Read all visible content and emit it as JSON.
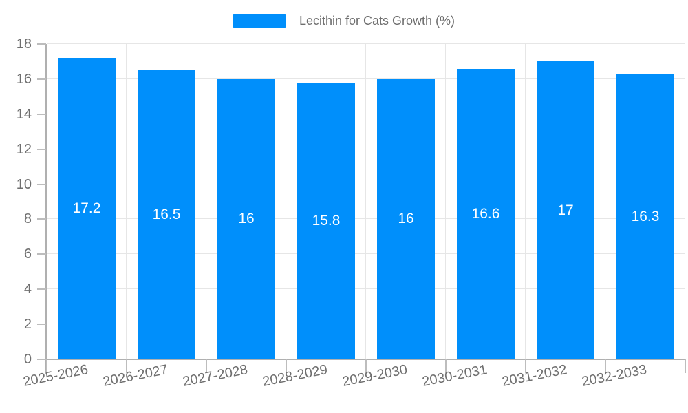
{
  "legend": {
    "label": "Lecithin for Cats Growth (%)",
    "swatch_color": "#008FFB"
  },
  "chart_data": {
    "type": "bar",
    "title": "Lecithin for Cats Growth (%)",
    "categories": [
      "2025-2026",
      "2026-2027",
      "2027-2028",
      "2028-2029",
      "2029-2030",
      "2030-2031",
      "2031-2032",
      "2032-2033"
    ],
    "values": [
      17.2,
      16.5,
      16,
      15.8,
      16,
      16.6,
      17,
      16.3
    ],
    "data_labels": [
      "17.2",
      "16.5",
      "16",
      "15.8",
      "16",
      "16.6",
      "17",
      "16.3"
    ],
    "xlabel": "",
    "ylabel": "",
    "ylim": [
      0,
      18
    ],
    "yticks": [
      0,
      2,
      4,
      6,
      8,
      10,
      12,
      14,
      16,
      18
    ],
    "grid": true,
    "legend_position": "top",
    "x_label_rotation_deg": -11,
    "colors": {
      "bar": "#008FFB",
      "data_label": "#ffffff",
      "axis_label": "#6f6f6f",
      "legend_text": "#6e6e6e",
      "grid": "#e6e6e6",
      "axis_line": "#b0b0b0",
      "tick": "#bdbdbd"
    }
  }
}
